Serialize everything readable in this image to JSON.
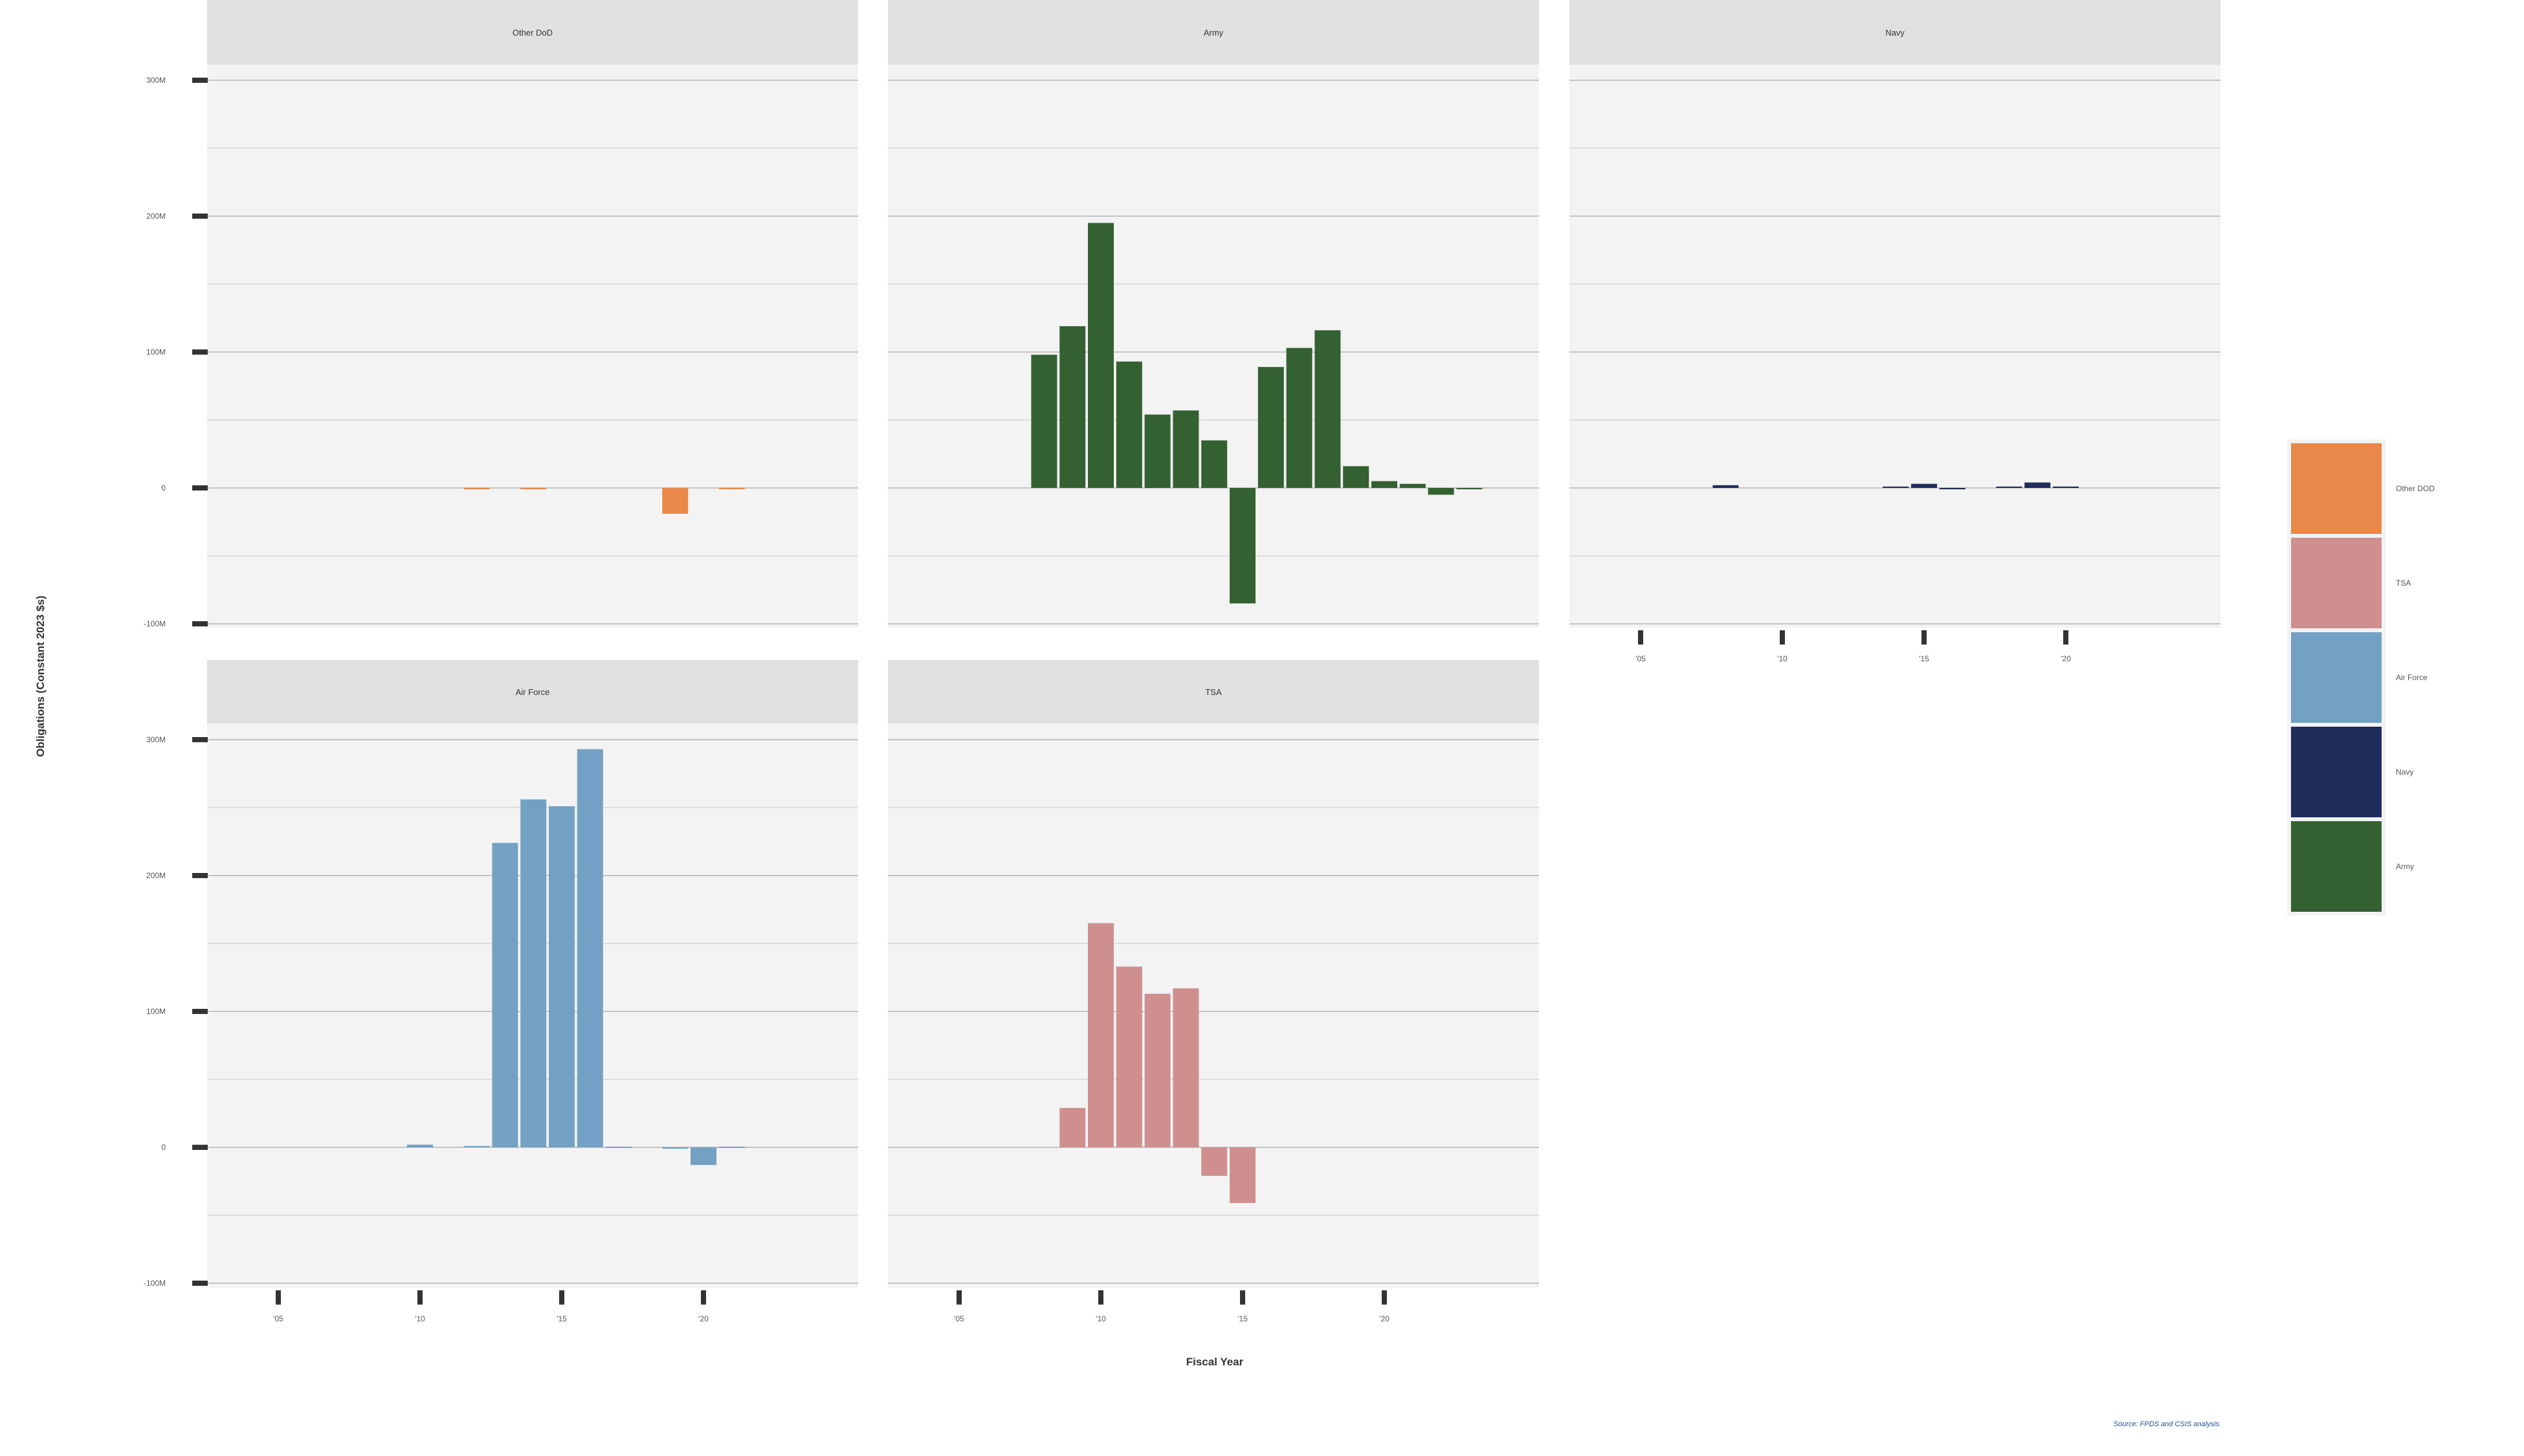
{
  "chart_data": {
    "type": "bar",
    "facet_layout": "facet_wrap, 3 columns",
    "y_axis_label": "Obligations (Constant 2023 $s)",
    "x_axis_label": "Fiscal Year",
    "source": "Source: FPDS and CSIS analysis.",
    "ylim": [
      -100,
      320
    ],
    "y_ticks": [
      {
        "value": 300,
        "label": "300M"
      },
      {
        "value": 200,
        "label": "200M"
      },
      {
        "value": 100,
        "label": "100M"
      },
      {
        "value": 0,
        "label": "0"
      },
      {
        "value": -100,
        "label": "-100M"
      }
    ],
    "xlim": [
      2000,
      2025
    ],
    "x_ticks": [
      {
        "value": 2005,
        "label": "'05"
      },
      {
        "value": 2010,
        "label": "'10"
      },
      {
        "value": 2015,
        "label": "'15"
      },
      {
        "value": 2020,
        "label": "'20"
      }
    ],
    "y_units": "millions of constant 2023 dollars",
    "legend_position": "right",
    "legend": [
      {
        "name": "Other DOD",
        "color": "#e8894a"
      },
      {
        "name": "TSA",
        "color": "#d08f8f"
      },
      {
        "name": "Air Force",
        "color": "#73a1c3"
      },
      {
        "name": "Navy",
        "color": "#1f2d5c"
      },
      {
        "name": "Army",
        "color": "#336131"
      }
    ],
    "panels": [
      {
        "title": "Other DoD",
        "color": "#e8894a",
        "row": 0,
        "col": 0,
        "show_x_ticks": false,
        "series": [
          {
            "x": 2012,
            "y": -1
          },
          {
            "x": 2014,
            "y": -1
          },
          {
            "x": 2019,
            "y": -19
          },
          {
            "x": 2021,
            "y": -0.5
          }
        ]
      },
      {
        "title": "Army",
        "color": "#336131",
        "row": 0,
        "col": 1,
        "show_x_ticks": false,
        "series": [
          {
            "x": 2008,
            "y": 98
          },
          {
            "x": 2009,
            "y": 119
          },
          {
            "x": 2010,
            "y": 195
          },
          {
            "x": 2011,
            "y": 93
          },
          {
            "x": 2012,
            "y": 54
          },
          {
            "x": 2013,
            "y": 57
          },
          {
            "x": 2014,
            "y": 35
          },
          {
            "x": 2015,
            "y": -85
          },
          {
            "x": 2016,
            "y": 89
          },
          {
            "x": 2017,
            "y": 103
          },
          {
            "x": 2018,
            "y": 116
          },
          {
            "x": 2019,
            "y": 16
          },
          {
            "x": 2020,
            "y": 5
          },
          {
            "x": 2021,
            "y": 3
          },
          {
            "x": 2022,
            "y": -5
          },
          {
            "x": 2023,
            "y": -1
          }
        ]
      },
      {
        "title": "Navy",
        "color": "#1f2d5c",
        "row": 0,
        "col": 2,
        "show_x_ticks": true,
        "series": [
          {
            "x": 2008,
            "y": 2
          },
          {
            "x": 2014,
            "y": 1
          },
          {
            "x": 2015,
            "y": 3
          },
          {
            "x": 2016,
            "y": -1
          },
          {
            "x": 2018,
            "y": 1
          },
          {
            "x": 2019,
            "y": 4
          },
          {
            "x": 2020,
            "y": 1
          }
        ]
      },
      {
        "title": "Air Force",
        "color": "#73a1c3",
        "row": 1,
        "col": 0,
        "show_x_ticks": true,
        "series": [
          {
            "x": 2010,
            "y": 2
          },
          {
            "x": 2012,
            "y": 1
          },
          {
            "x": 2013,
            "y": 224
          },
          {
            "x": 2014,
            "y": 256
          },
          {
            "x": 2015,
            "y": 251
          },
          {
            "x": 2016,
            "y": 293
          },
          {
            "x": 2017,
            "y": 0.5
          },
          {
            "x": 2019,
            "y": -1
          },
          {
            "x": 2020,
            "y": -13
          },
          {
            "x": 2021,
            "y": 0.5
          }
        ]
      },
      {
        "title": "TSA",
        "color": "#d08f8f",
        "row": 1,
        "col": 1,
        "show_x_ticks": true,
        "series": [
          {
            "x": 2009,
            "y": 29
          },
          {
            "x": 2010,
            "y": 165
          },
          {
            "x": 2011,
            "y": 133
          },
          {
            "x": 2012,
            "y": 113
          },
          {
            "x": 2013,
            "y": 117
          },
          {
            "x": 2014,
            "y": -21
          },
          {
            "x": 2015,
            "y": -41
          }
        ]
      }
    ]
  }
}
